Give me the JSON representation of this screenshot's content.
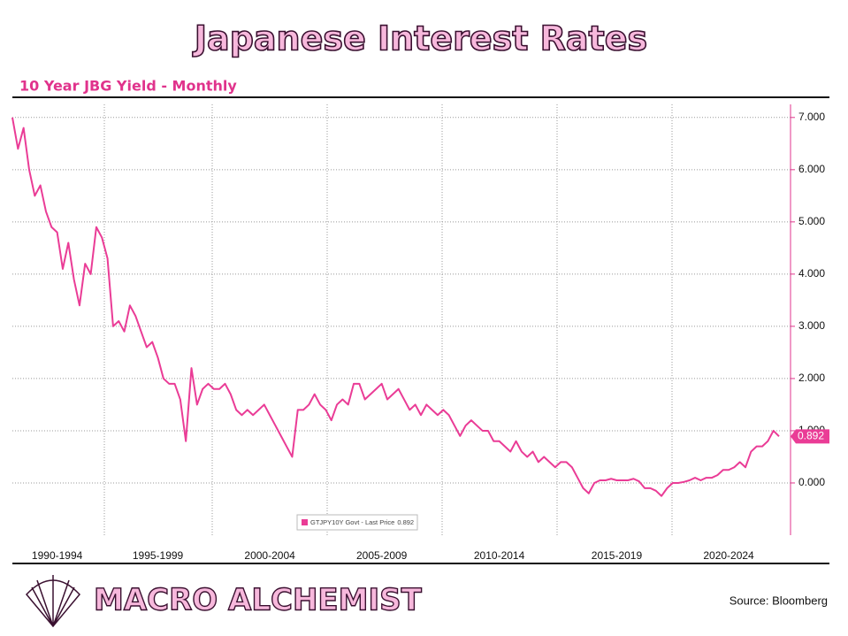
{
  "title": "Japanese Interest Rates",
  "chart_data": {
    "type": "line",
    "subtitle": "10 Year JBG Yield - Monthly",
    "categories": [
      null,
      null,
      null,
      null,
      null,
      null,
      null,
      null,
      "1990-1994",
      null,
      null,
      null,
      null,
      null,
      null,
      null,
      null,
      null,
      null,
      null,
      null,
      null,
      null,
      null,
      null,
      null,
      "1995-1999",
      null,
      null,
      null,
      null,
      null,
      null,
      null,
      null,
      null,
      null,
      null,
      null,
      null,
      null,
      null,
      null,
      null,
      null,
      null,
      "2000-2004",
      null,
      null,
      null,
      null,
      null,
      null,
      null,
      null,
      null,
      null,
      null,
      null,
      null,
      null,
      null,
      null,
      null,
      null,
      null,
      "2005-2009",
      null,
      null,
      null,
      null,
      null,
      null,
      null,
      null,
      null,
      null,
      null,
      null,
      null,
      null,
      null,
      null,
      null,
      null,
      null,
      null,
      "2010-2014",
      null,
      null,
      null,
      null,
      null,
      null,
      null,
      null,
      null,
      null,
      null,
      null,
      null,
      null,
      null,
      null,
      null,
      null,
      null,
      null,
      "2015-2019",
      null,
      null,
      null,
      null,
      null,
      null,
      null,
      null,
      null,
      null,
      null,
      null,
      null,
      null,
      null,
      null,
      null,
      null,
      null,
      "2020-2024",
      null,
      null,
      null,
      null,
      null,
      null,
      null,
      null,
      null
    ],
    "series": [
      {
        "name": "GTJPY10Y Govt - Last Price",
        "color": "#ea3c96",
        "values": [
          7.0,
          6.4,
          6.8,
          6.0,
          5.5,
          5.7,
          5.2,
          4.9,
          4.8,
          4.1,
          4.6,
          3.9,
          3.4,
          4.2,
          4.0,
          4.9,
          4.7,
          4.3,
          3.0,
          3.1,
          2.9,
          3.4,
          3.2,
          2.9,
          2.6,
          2.7,
          2.4,
          2.0,
          1.9,
          1.9,
          1.6,
          0.8,
          2.2,
          1.5,
          1.8,
          1.9,
          1.8,
          1.8,
          1.9,
          1.7,
          1.4,
          1.3,
          1.4,
          1.3,
          1.4,
          1.5,
          1.3,
          1.1,
          0.9,
          0.7,
          0.5,
          1.4,
          1.4,
          1.5,
          1.7,
          1.5,
          1.4,
          1.2,
          1.5,
          1.6,
          1.5,
          1.9,
          1.9,
          1.6,
          1.7,
          1.8,
          1.9,
          1.6,
          1.7,
          1.8,
          1.6,
          1.4,
          1.5,
          1.3,
          1.5,
          1.4,
          1.3,
          1.4,
          1.3,
          1.1,
          0.9,
          1.1,
          1.2,
          1.1,
          1.0,
          1.0,
          0.8,
          0.8,
          0.7,
          0.6,
          0.8,
          0.6,
          0.5,
          0.6,
          0.4,
          0.5,
          0.4,
          0.3,
          0.4,
          0.4,
          0.3,
          0.1,
          -0.1,
          -0.2,
          0.0,
          0.05,
          0.05,
          0.08,
          0.05,
          0.05,
          0.05,
          0.08,
          0.03,
          -0.1,
          -0.1,
          -0.15,
          -0.25,
          -0.1,
          0.0,
          0.0,
          0.02,
          0.05,
          0.1,
          0.05,
          0.1,
          0.1,
          0.15,
          0.25,
          0.25,
          0.3,
          0.4,
          0.3,
          0.6,
          0.7,
          0.7,
          0.8,
          1.0,
          0.892
        ]
      }
    ],
    "last_price": 0.892,
    "ylim": [
      -1.0,
      7.2
    ],
    "yticks": [
      {
        "value": 0,
        "label": "0.000"
      },
      {
        "value": 1,
        "label": "1.000"
      },
      {
        "value": 2,
        "label": "2.000"
      },
      {
        "value": 3,
        "label": "3.000"
      },
      {
        "value": 4,
        "label": "4.000"
      },
      {
        "value": 5,
        "label": "5.000"
      },
      {
        "value": 6,
        "label": "6.000"
      },
      {
        "value": 7,
        "label": "7.000"
      }
    ],
    "grid": true
  },
  "footer": {
    "brand": "MACRO ALCHEMIST",
    "source": "Source: Bloomberg"
  }
}
